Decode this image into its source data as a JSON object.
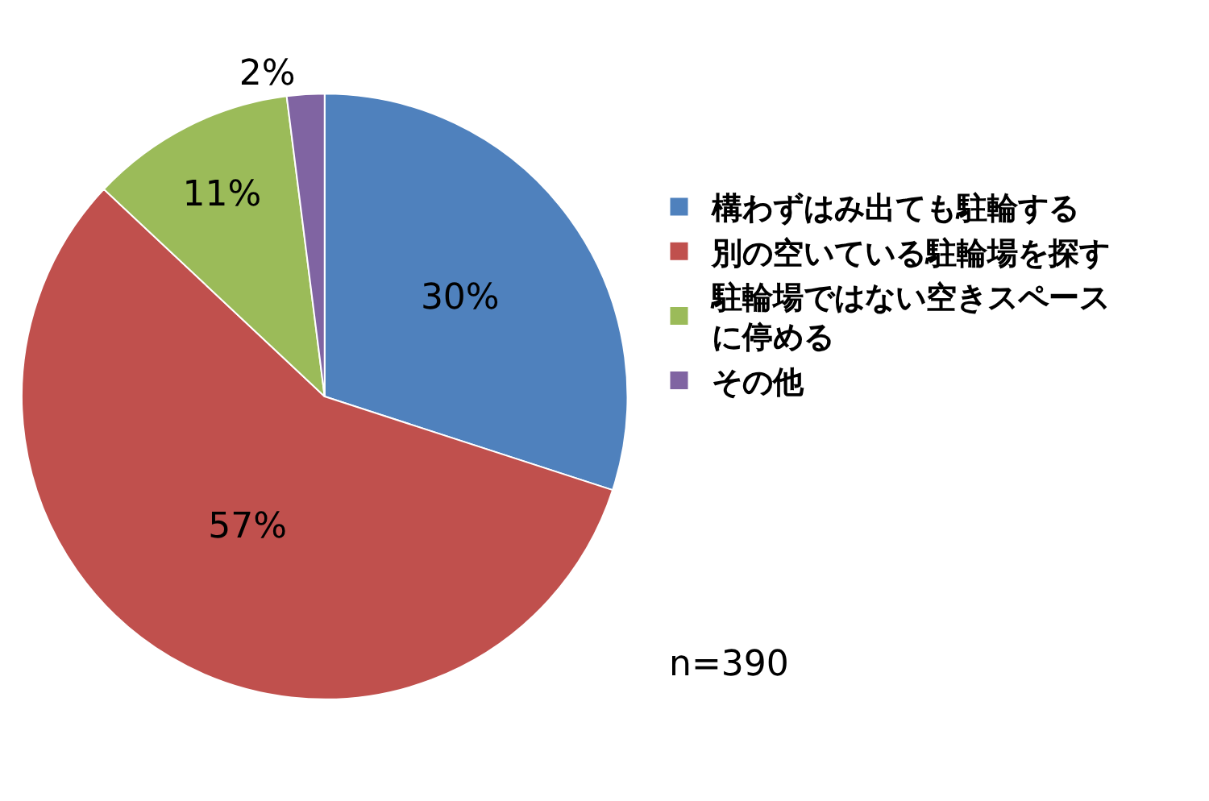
{
  "chart_data": {
    "type": "pie",
    "categories": [
      "構わずはみ出ても駐輪する",
      "別の空いている駐輪場を探す",
      "駐輪場ではない空きスペースに停める",
      "その他"
    ],
    "values": [
      30,
      57,
      11,
      2
    ],
    "colors": [
      "#4f81bd",
      "#c0504d",
      "#9bbb59",
      "#8064a2"
    ],
    "value_labels": [
      "30%",
      "57%",
      "11%",
      "2%"
    ],
    "legend": "right",
    "annotations": [
      "n=390"
    ]
  }
}
